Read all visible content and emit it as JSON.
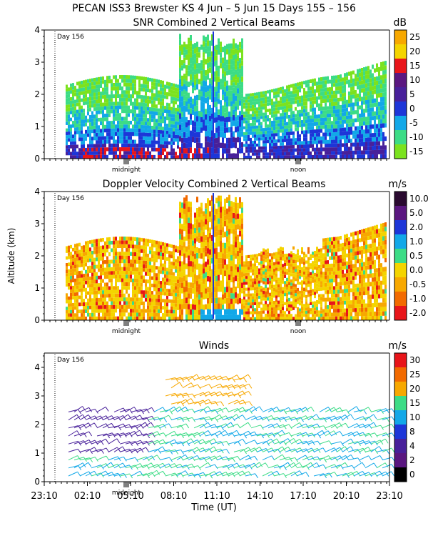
{
  "header": {
    "title": "PECAN ISS3 Brewster KS    4 Jun –   5 Jun 15 Days 155 – 156"
  },
  "chart_data": [
    {
      "type": "heatmap",
      "title": "SNR Combined 2 Vertical Beams",
      "day_label": "Day 156",
      "xlabel": "",
      "ylabel": "",
      "ylim": [
        0,
        4
      ],
      "y_ticks": [
        "0",
        "1",
        "2",
        "3",
        "4"
      ],
      "x_markers": [
        "midnight",
        "noon"
      ],
      "colorbar": {
        "unit": "dB",
        "ticks": [
          "25",
          "20",
          "15",
          "10",
          "5",
          "0",
          "-5",
          "-10",
          "-15"
        ],
        "colors": [
          "#f7a800",
          "#f4d400",
          "#e8151a",
          "#5a1780",
          "#48209a",
          "#1d36d8",
          "#12a8e8",
          "#3cdc86",
          "#7be21e"
        ]
      }
    },
    {
      "type": "heatmap",
      "title": "Doppler Velocity Combined 2 Vertical Beams",
      "day_label": "Day 156",
      "xlabel": "",
      "ylabel": "Altitude (km)",
      "ylim": [
        0,
        4
      ],
      "y_ticks": [
        "0",
        "1",
        "2",
        "3",
        "4"
      ],
      "x_markers": [
        "midnight",
        "noon"
      ],
      "colorbar": {
        "unit": "m/s",
        "ticks": [
          "10.0",
          "5.0",
          "2.0",
          "1.0",
          "0.5",
          "0.0",
          "-0.5",
          "-1.0",
          "-2.0"
        ],
        "colors": [
          "#2a0a30",
          "#5a1780",
          "#1d36d8",
          "#12a8e8",
          "#3cdc86",
          "#f4d400",
          "#f7a800",
          "#f26a00",
          "#e8151a"
        ]
      }
    },
    {
      "type": "scatter",
      "title": "Winds",
      "day_label": "Day 156",
      "xlabel": "Time (UT)",
      "ylabel": "",
      "ylim": [
        0,
        4.5
      ],
      "y_ticks": [
        "0",
        "1",
        "2",
        "3",
        "4"
      ],
      "x_ticks": [
        "23:10",
        "02:10",
        "05:10",
        "08:10",
        "11:10",
        "14:10",
        "17:10",
        "20:10",
        "23:10"
      ],
      "x_markers": [
        "midnight"
      ],
      "colorbar": {
        "unit": "m/s",
        "ticks": [
          "30",
          "25",
          "20",
          "15",
          "10",
          "8",
          "4",
          "2",
          "0"
        ],
        "colors": [
          "#e8151a",
          "#f26a00",
          "#f7a800",
          "#3cdc86",
          "#12a8e8",
          "#1d36d8",
          "#48209a",
          "#5a1780",
          "#000000"
        ]
      }
    }
  ]
}
